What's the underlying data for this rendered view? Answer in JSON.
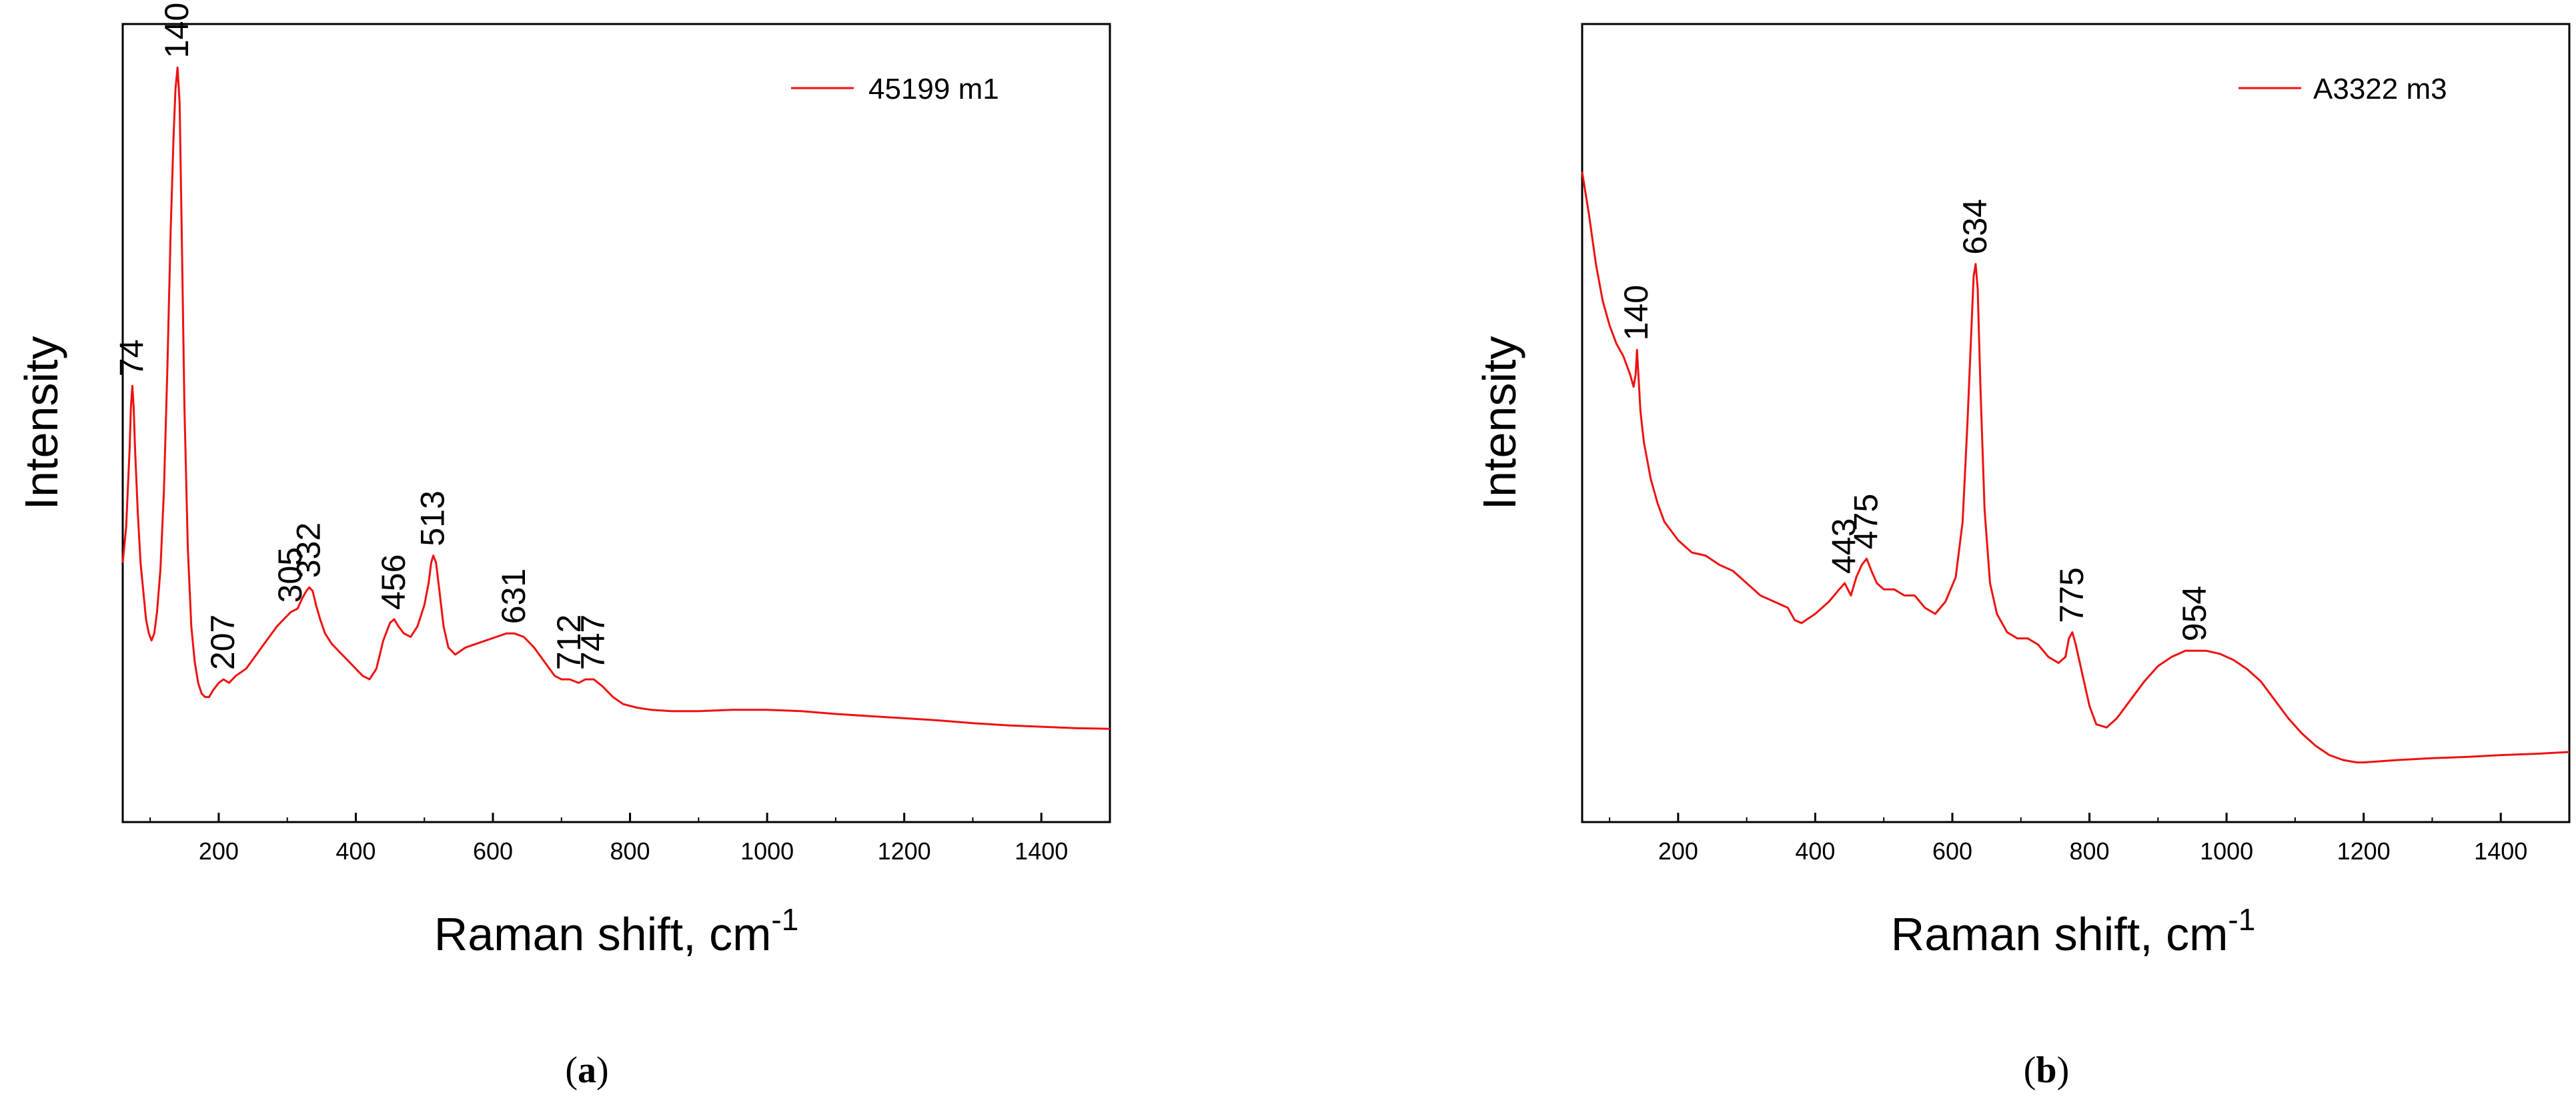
{
  "chart_data": [
    {
      "type": "line",
      "panel_caption_letter": "a",
      "xlabel": "Raman shift, cm",
      "xlabel_superscript": "-1",
      "ylabel": "Intensity",
      "xlim": [
        60,
        1500
      ],
      "ylim": [
        0,
        1
      ],
      "y_ticks_shown": false,
      "x_ticks": [
        200,
        400,
        600,
        800,
        1000,
        1200,
        1400
      ],
      "series": [
        {
          "name": "45199 m1",
          "color": "#ee1111",
          "x": [
            60,
            65,
            70,
            72,
            74,
            76,
            78,
            82,
            86,
            90,
            94,
            98,
            102,
            106,
            110,
            115,
            120,
            125,
            130,
            134,
            137,
            140,
            143,
            146,
            150,
            155,
            160,
            165,
            170,
            175,
            180,
            186,
            192,
            200,
            207,
            215,
            225,
            240,
            255,
            270,
            285,
            295,
            305,
            315,
            322,
            328,
            332,
            337,
            342,
            348,
            355,
            365,
            380,
            395,
            410,
            420,
            430,
            440,
            450,
            456,
            462,
            470,
            480,
            490,
            500,
            506,
            510,
            513,
            517,
            522,
            528,
            535,
            545,
            560,
            575,
            590,
            605,
            620,
            631,
            645,
            660,
            675,
            690,
            700,
            712,
            725,
            735,
            747,
            760,
            775,
            790,
            810,
            830,
            860,
            900,
            950,
            1000,
            1050,
            1100,
            1150,
            1200,
            1250,
            1300,
            1350,
            1400,
            1450,
            1500
          ],
          "values": [
            0.28,
            0.33,
            0.44,
            0.5,
            0.53,
            0.5,
            0.44,
            0.35,
            0.28,
            0.24,
            0.2,
            0.18,
            0.17,
            0.18,
            0.21,
            0.27,
            0.38,
            0.55,
            0.75,
            0.88,
            0.95,
            0.98,
            0.93,
            0.75,
            0.5,
            0.3,
            0.19,
            0.14,
            0.11,
            0.095,
            0.09,
            0.09,
            0.1,
            0.11,
            0.115,
            0.11,
            0.12,
            0.13,
            0.15,
            0.17,
            0.19,
            0.2,
            0.21,
            0.215,
            0.23,
            0.24,
            0.245,
            0.24,
            0.22,
            0.2,
            0.18,
            0.165,
            0.15,
            0.135,
            0.12,
            0.115,
            0.13,
            0.17,
            0.195,
            0.2,
            0.19,
            0.18,
            0.175,
            0.19,
            0.22,
            0.25,
            0.28,
            0.29,
            0.28,
            0.24,
            0.19,
            0.16,
            0.15,
            0.16,
            0.165,
            0.17,
            0.175,
            0.18,
            0.18,
            0.175,
            0.16,
            0.14,
            0.12,
            0.115,
            0.115,
            0.11,
            0.115,
            0.115,
            0.105,
            0.09,
            0.08,
            0.075,
            0.072,
            0.07,
            0.07,
            0.072,
            0.072,
            0.07,
            0.066,
            0.063,
            0.06,
            0.057,
            0.053,
            0.05,
            0.048,
            0.046,
            0.045
          ]
        }
      ],
      "annotations": [
        {
          "text": "74",
          "x": 74,
          "y": 0.53
        },
        {
          "text": "140",
          "x": 140,
          "y": 0.98
        },
        {
          "text": "207",
          "x": 207,
          "y": 0.115
        },
        {
          "text": "305",
          "x": 305,
          "y": 0.21
        },
        {
          "text": "332",
          "x": 332,
          "y": 0.245
        },
        {
          "text": "456",
          "x": 456,
          "y": 0.2
        },
        {
          "text": "513",
          "x": 513,
          "y": 0.29
        },
        {
          "text": "631",
          "x": 631,
          "y": 0.18
        },
        {
          "text": "712",
          "x": 712,
          "y": 0.115
        },
        {
          "text": "747",
          "x": 747,
          "y": 0.115
        }
      ],
      "legend": {
        "label": "45199 m1",
        "location": "top-right"
      }
    },
    {
      "type": "line",
      "panel_caption_letter": "b",
      "xlabel": "Raman shift, cm",
      "xlabel_superscript": "-1",
      "ylabel": "Intensity",
      "xlim": [
        60,
        1500
      ],
      "ylim": [
        0,
        1
      ],
      "y_ticks_shown": false,
      "x_ticks": [
        200,
        400,
        600,
        800,
        1000,
        1200,
        1400
      ],
      "series": [
        {
          "name": "A3322 m3",
          "color": "#ee1111",
          "x": [
            60,
            70,
            80,
            90,
            100,
            110,
            120,
            130,
            135,
            138,
            140,
            142,
            145,
            150,
            160,
            170,
            180,
            200,
            220,
            240,
            260,
            280,
            300,
            320,
            340,
            360,
            370,
            380,
            400,
            420,
            435,
            443,
            452,
            460,
            468,
            475,
            482,
            490,
            500,
            515,
            530,
            545,
            560,
            575,
            590,
            605,
            615,
            622,
            628,
            631,
            634,
            637,
            641,
            647,
            655,
            665,
            680,
            695,
            710,
            725,
            740,
            755,
            765,
            770,
            775,
            780,
            790,
            800,
            810,
            825,
            840,
            860,
            880,
            900,
            920,
            940,
            954,
            970,
            990,
            1010,
            1030,
            1050,
            1070,
            1090,
            1110,
            1130,
            1150,
            1170,
            1190,
            1200,
            1250,
            1300,
            1350,
            1400,
            1450,
            1500
          ],
          "values": [
            0.97,
            0.9,
            0.82,
            0.76,
            0.72,
            0.69,
            0.67,
            0.64,
            0.62,
            0.64,
            0.68,
            0.64,
            0.58,
            0.53,
            0.47,
            0.43,
            0.4,
            0.37,
            0.35,
            0.345,
            0.33,
            0.32,
            0.3,
            0.28,
            0.27,
            0.26,
            0.24,
            0.235,
            0.25,
            0.27,
            0.29,
            0.3,
            0.28,
            0.31,
            0.33,
            0.34,
            0.32,
            0.3,
            0.29,
            0.29,
            0.28,
            0.28,
            0.26,
            0.25,
            0.27,
            0.31,
            0.4,
            0.56,
            0.72,
            0.8,
            0.82,
            0.78,
            0.62,
            0.42,
            0.3,
            0.25,
            0.22,
            0.21,
            0.21,
            0.2,
            0.18,
            0.17,
            0.18,
            0.21,
            0.22,
            0.2,
            0.15,
            0.1,
            0.07,
            0.065,
            0.08,
            0.11,
            0.14,
            0.165,
            0.18,
            0.19,
            0.19,
            0.19,
            0.185,
            0.175,
            0.16,
            0.14,
            0.11,
            0.08,
            0.055,
            0.035,
            0.02,
            0.012,
            0.008,
            0.008,
            0.012,
            0.015,
            0.017,
            0.02,
            0.022,
            0.025
          ]
        }
      ],
      "annotations": [
        {
          "text": "140",
          "x": 140,
          "y": 0.68
        },
        {
          "text": "443",
          "x": 443,
          "y": 0.3
        },
        {
          "text": "475",
          "x": 475,
          "y": 0.34
        },
        {
          "text": "634",
          "x": 634,
          "y": 0.82
        },
        {
          "text": "775",
          "x": 775,
          "y": 0.22
        },
        {
          "text": "954",
          "x": 954,
          "y": 0.19
        }
      ],
      "legend": {
        "label": "A3322 m3",
        "location": "top-right"
      }
    }
  ]
}
